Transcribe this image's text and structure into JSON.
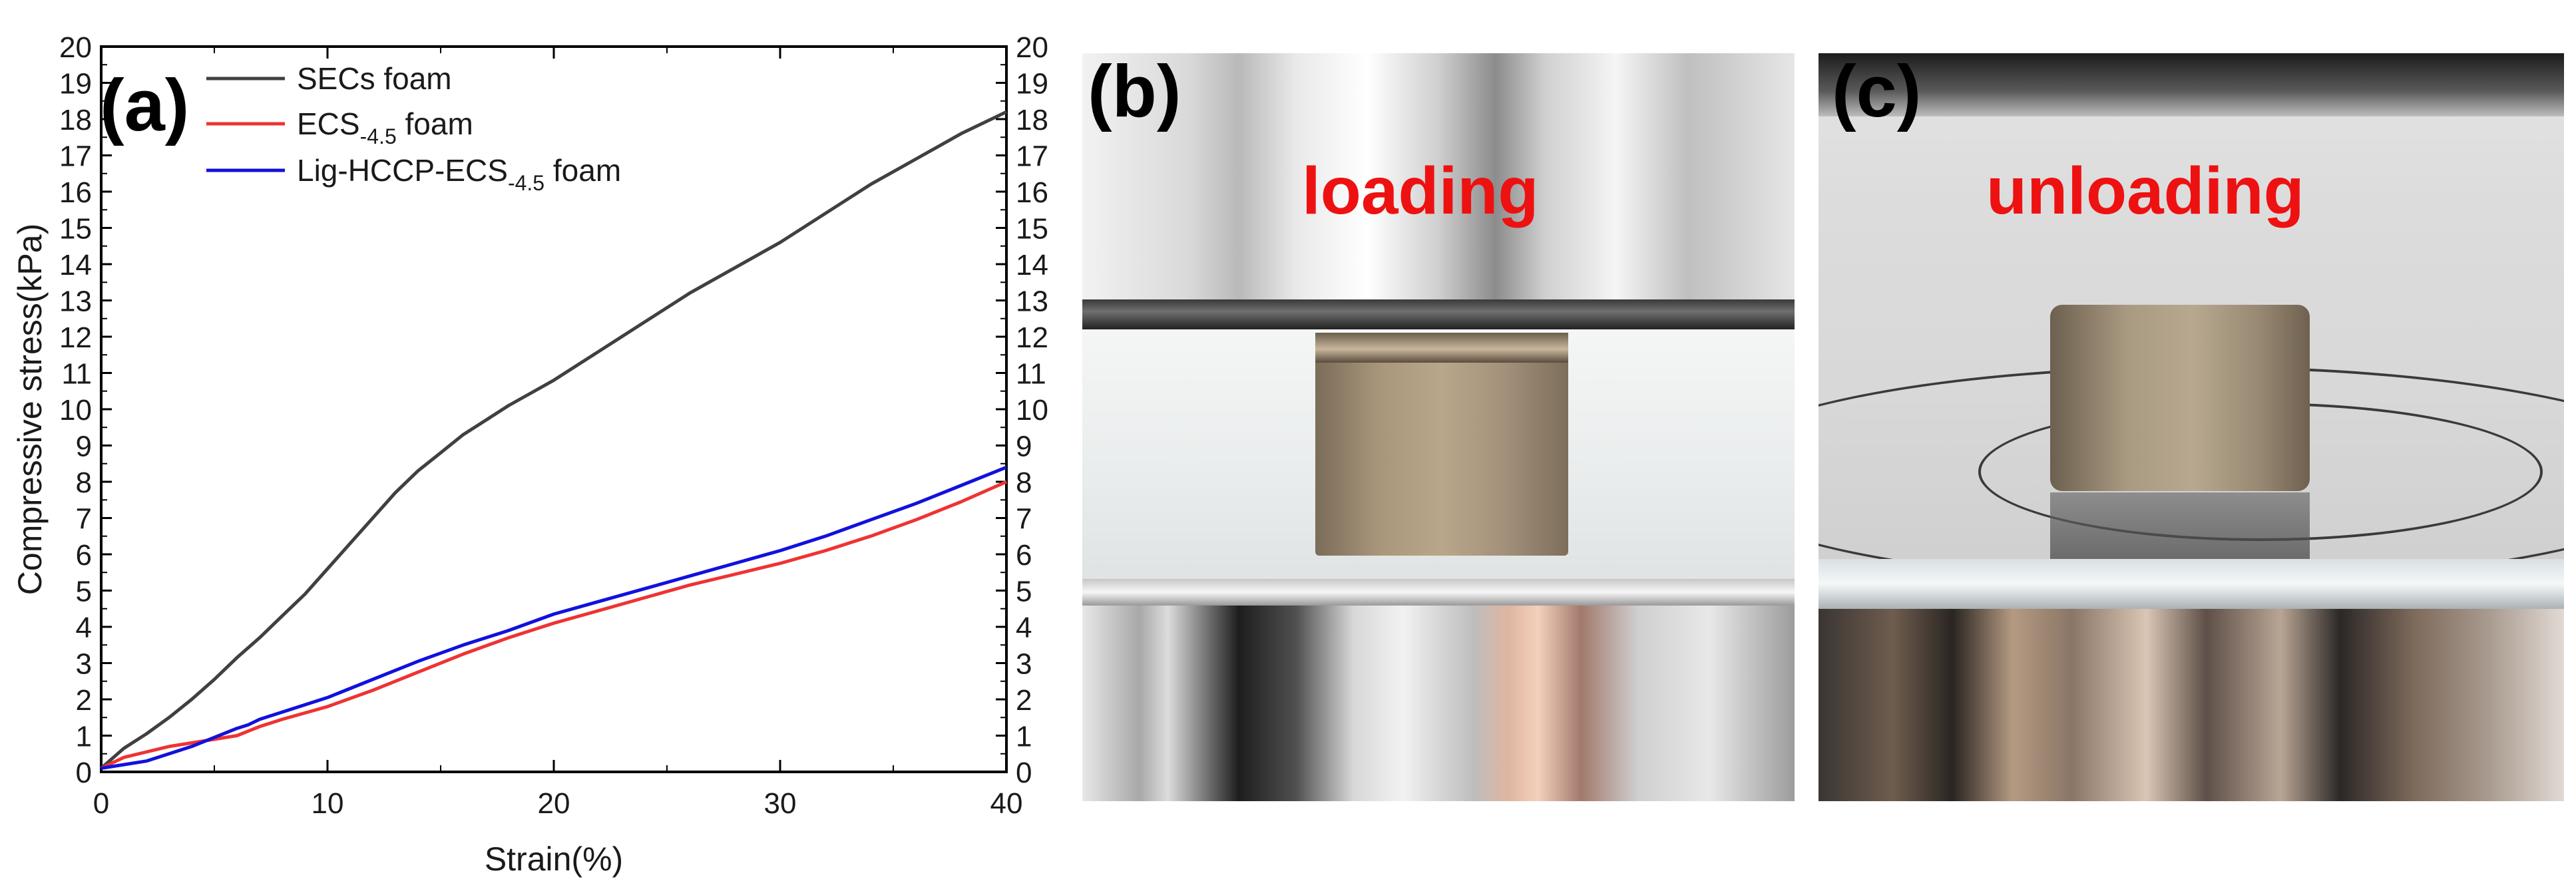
{
  "panels": {
    "a": "(a)",
    "b": "(b)",
    "c": "(c)"
  },
  "photo_b": {
    "label": "loading"
  },
  "photo_c": {
    "label": "unloading"
  },
  "chart_data": {
    "type": "line",
    "xlabel": "Strain(%)",
    "ylabel": "Compressive stress(kPa)",
    "xlim": [
      0,
      40
    ],
    "ylim": [
      0,
      20
    ],
    "xticks": [
      0,
      10,
      20,
      30,
      40
    ],
    "yticks": [
      0,
      1,
      2,
      3,
      4,
      5,
      6,
      7,
      8,
      9,
      10,
      11,
      12,
      13,
      14,
      15,
      16,
      17,
      18,
      19,
      20
    ],
    "right_axis_ticks": true,
    "grid": false,
    "legend_position": "top-left",
    "series": [
      {
        "name": "SECs foam",
        "name_main": "SECs foam",
        "name_sub": "",
        "name_suffix": "",
        "color": "#404040",
        "x": [
          0,
          1,
          2,
          3,
          4,
          5,
          6,
          7,
          8,
          9,
          10,
          11,
          12,
          13,
          14,
          15,
          16,
          17,
          18,
          19,
          20,
          22,
          24,
          26,
          28,
          30,
          32,
          34,
          36,
          38,
          40
        ],
        "y": [
          0.1,
          0.65,
          1.05,
          1.5,
          2.0,
          2.55,
          3.15,
          3.7,
          4.3,
          4.9,
          5.6,
          6.3,
          7.0,
          7.7,
          8.3,
          8.8,
          9.3,
          9.7,
          10.1,
          10.45,
          10.8,
          11.6,
          12.4,
          13.2,
          13.9,
          14.6,
          15.4,
          16.2,
          16.9,
          17.6,
          18.2
        ]
      },
      {
        "name": "ECS-4.5 foam",
        "name_main": "ECS",
        "name_sub": "-4.5",
        "name_suffix": " foam",
        "color": "#ee3333",
        "x": [
          0,
          1,
          2,
          3,
          4,
          5,
          6,
          7,
          8,
          10,
          12,
          14,
          16,
          18,
          20,
          22,
          24,
          26,
          28,
          30,
          32,
          34,
          36,
          38,
          40
        ],
        "y": [
          0.1,
          0.4,
          0.55,
          0.7,
          0.8,
          0.9,
          1.0,
          1.25,
          1.45,
          1.8,
          2.25,
          2.75,
          3.25,
          3.7,
          4.1,
          4.45,
          4.8,
          5.15,
          5.45,
          5.75,
          6.1,
          6.5,
          6.95,
          7.45,
          8.0
        ]
      },
      {
        "name": "Lig-HCCP-ECS-4.5 foam",
        "name_main": "Lig-HCCP-ECS",
        "name_sub": "-4.5",
        "name_suffix": " foam",
        "color": "#1111dd",
        "x": [
          0,
          1,
          2,
          2.5,
          3,
          4,
          5,
          6,
          6.5,
          7,
          8,
          10,
          12,
          14,
          16,
          18,
          20,
          22,
          24,
          26,
          28,
          30,
          32,
          34,
          36,
          38,
          40
        ],
        "y": [
          0.1,
          0.2,
          0.3,
          0.4,
          0.5,
          0.7,
          0.95,
          1.2,
          1.3,
          1.45,
          1.65,
          2.05,
          2.55,
          3.05,
          3.5,
          3.9,
          4.35,
          4.7,
          5.05,
          5.4,
          5.75,
          6.1,
          6.5,
          6.95,
          7.4,
          7.9,
          8.4
        ]
      }
    ]
  }
}
